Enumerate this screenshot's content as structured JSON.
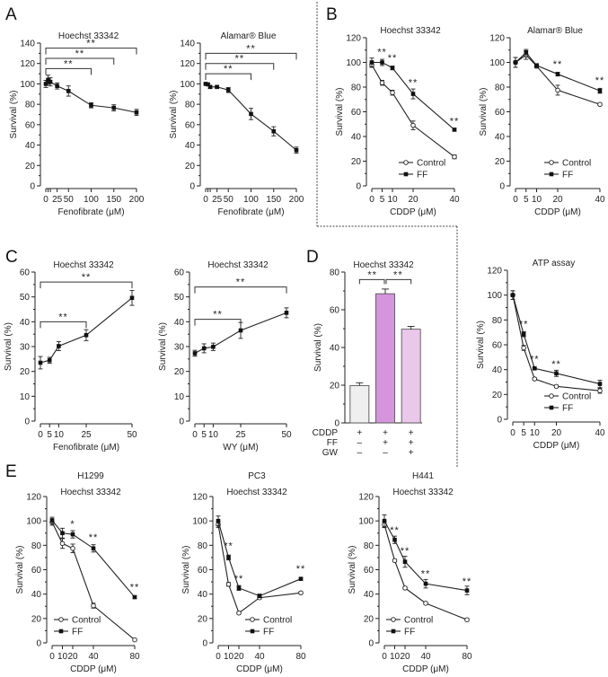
{
  "figure": {
    "panel_labels": [
      "A",
      "B",
      "C",
      "D",
      "E"
    ]
  },
  "chart_data": [
    {
      "id": "A1",
      "panel": "A",
      "type": "line",
      "title": "Hoechst 33342",
      "xlabel": "Fenofibrate (μM)",
      "ylabel": "Survival (%)",
      "xlim": [
        0,
        200
      ],
      "ylim": [
        0,
        140
      ],
      "xticks": [
        0,
        25,
        50,
        100,
        150,
        200
      ],
      "xticks_minor": [
        5,
        10
      ],
      "yticks": [
        0,
        20,
        40,
        60,
        80,
        100,
        120,
        140
      ],
      "series": [
        {
          "name": "Fenofibrate",
          "marker": "filled",
          "x": [
            0,
            5,
            10,
            25,
            50,
            100,
            150,
            200
          ],
          "y": [
            100,
            104,
            102,
            98,
            93,
            79,
            76.5,
            72
          ],
          "err": [
            3.5,
            4.5,
            4,
            3,
            5,
            2.5,
            3,
            3
          ]
        }
      ],
      "brackets": [
        {
          "from": 0,
          "to": 100,
          "level": 115,
          "label": "**"
        },
        {
          "from": 0,
          "to": 150,
          "level": 125,
          "label": "**"
        },
        {
          "from": 0,
          "to": 200,
          "level": 135,
          "label": "**"
        }
      ],
      "annotations": [],
      "legend": null
    },
    {
      "id": "A2",
      "panel": "A",
      "type": "line",
      "title": "Alamar® Blue",
      "xlabel": "Fenofibrate (μM)",
      "ylabel": "Survival (%)",
      "xlim": [
        0,
        200
      ],
      "ylim": [
        0,
        140
      ],
      "xticks": [
        0,
        25,
        50,
        100,
        150,
        200
      ],
      "xticks_minor": [
        5,
        10
      ],
      "yticks": [
        0,
        20,
        40,
        60,
        80,
        100,
        120,
        140
      ],
      "series": [
        {
          "name": "Fenofibrate",
          "marker": "filled",
          "x": [
            0,
            5,
            10,
            25,
            50,
            100,
            150,
            200
          ],
          "y": [
            100,
            99.5,
            97,
            97,
            94,
            70.5,
            53.5,
            35
          ],
          "err": [
            1,
            1,
            1.5,
            1,
            2.5,
            5.5,
            4.5,
            3
          ]
        }
      ],
      "brackets": [
        {
          "from": 0,
          "to": 100,
          "level": 110,
          "label": "**"
        },
        {
          "from": 0,
          "to": 150,
          "level": 120,
          "label": "**"
        },
        {
          "from": 0,
          "to": 200,
          "level": 130,
          "label": "**"
        }
      ],
      "annotations": [],
      "legend": null
    },
    {
      "id": "B1",
      "panel": "B",
      "type": "line",
      "title": "Hoechst 33342",
      "xlabel": "CDDP (μM)",
      "ylabel": "Survival (%)",
      "xlim": [
        0,
        40
      ],
      "ylim": [
        0,
        120
      ],
      "xticks": [
        0,
        5,
        10,
        20,
        40
      ],
      "yticks": [
        0,
        20,
        40,
        60,
        80,
        100,
        120
      ],
      "series": [
        {
          "name": "Control",
          "marker": "open",
          "x": [
            0,
            5,
            10,
            20,
            40
          ],
          "y": [
            98,
            83.5,
            75.5,
            49,
            23.5
          ],
          "err": [
            2,
            2,
            2,
            3.5,
            1.5
          ]
        },
        {
          "name": "FF",
          "marker": "filled",
          "x": [
            0,
            5,
            10,
            20,
            40
          ],
          "y": [
            100,
            100,
            95.5,
            74.5,
            45.5
          ],
          "err": [
            3.5,
            2.5,
            1.5,
            4,
            1
          ]
        }
      ],
      "brackets": [],
      "annotations": [
        {
          "x": 5,
          "y": 106,
          "label": "**"
        },
        {
          "x": 10,
          "y": 101,
          "label": "**"
        },
        {
          "x": 20,
          "y": 81,
          "label": "**"
        },
        {
          "x": 40,
          "y": 50,
          "label": "**"
        }
      ],
      "legend": {
        "position": "bottom-right",
        "entries": [
          "Control",
          "FF"
        ]
      }
    },
    {
      "id": "B2",
      "panel": "B",
      "type": "line",
      "title": "Alamar® Blue",
      "xlabel": "CDDP (μM)",
      "ylabel": "Survival (%)",
      "xlim": [
        0,
        40
      ],
      "ylim": [
        0,
        120
      ],
      "xticks": [
        0,
        5,
        10,
        20,
        40
      ],
      "yticks": [
        0,
        20,
        40,
        60,
        80,
        100,
        120
      ],
      "series": [
        {
          "name": "Control",
          "marker": "open",
          "x": [
            0,
            5,
            10,
            20,
            40
          ],
          "y": [
            100,
            106,
            97,
            77.5,
            66
          ],
          "err": [
            4,
            3.5,
            1.5,
            4,
            1
          ]
        },
        {
          "name": "FF",
          "marker": "filled",
          "x": [
            0,
            5,
            10,
            20,
            40
          ],
          "y": [
            100,
            108,
            97.5,
            90.5,
            77
          ],
          "err": [
            4,
            2.5,
            1.5,
            1.5,
            2
          ]
        }
      ],
      "brackets": [],
      "annotations": [
        {
          "x": 20,
          "y": 96,
          "label": "**"
        },
        {
          "x": 40,
          "y": 83,
          "label": "**"
        }
      ],
      "legend": {
        "position": "bottom-right",
        "entries": [
          "Control",
          "FF"
        ]
      }
    },
    {
      "id": "C1",
      "panel": "C",
      "type": "line",
      "title": "Hoechst 33342",
      "xlabel": "Fenofibrate (μM)",
      "ylabel": "Survival (%)",
      "xlim": [
        0,
        50
      ],
      "ylim": [
        0,
        60
      ],
      "xticks": [
        0,
        5,
        10,
        25,
        50
      ],
      "yticks": [
        0,
        10,
        20,
        30,
        40,
        50,
        60
      ],
      "series": [
        {
          "name": "Fenofibrate",
          "marker": "filled",
          "x": [
            0,
            5,
            10,
            25,
            50
          ],
          "y": [
            23.5,
            24.5,
            30.2,
            34.6,
            49.6
          ],
          "err": [
            2.5,
            1.2,
            1.8,
            2.2,
            3
          ]
        }
      ],
      "brackets": [
        {
          "from": 0,
          "to": 25,
          "level": 40,
          "label": "**"
        },
        {
          "from": 0,
          "to": 50,
          "level": 56,
          "label": "**"
        }
      ],
      "annotations": [],
      "legend": null
    },
    {
      "id": "C2",
      "panel": "C",
      "type": "line",
      "title": "Hoechst 33342",
      "xlabel": "WY (μM)",
      "ylabel": "Survival (%)",
      "xlim": [
        0,
        50
      ],
      "ylim": [
        0,
        60
      ],
      "xticks": [
        0,
        5,
        10,
        25,
        50
      ],
      "yticks": [
        0,
        10,
        20,
        30,
        40,
        50,
        60
      ],
      "series": [
        {
          "name": "WY",
          "marker": "filled",
          "x": [
            0,
            5,
            10,
            25,
            50
          ],
          "y": [
            27.3,
            29.3,
            29.9,
            36.5,
            43.6
          ],
          "err": [
            1.2,
            1.8,
            1.5,
            3.2,
            2
          ]
        }
      ],
      "brackets": [
        {
          "from": 0,
          "to": 25,
          "level": 41,
          "label": "**"
        },
        {
          "from": 0,
          "to": 50,
          "level": 54,
          "label": "**"
        }
      ],
      "annotations": [],
      "legend": null
    },
    {
      "id": "D1",
      "panel": "D",
      "type": "bar",
      "title": "Hoechst 33342",
      "xlabel": "",
      "ylabel": "Survival (%)",
      "ylim": [
        0,
        80
      ],
      "yticks": [
        0,
        20,
        40,
        60,
        80
      ],
      "categories": [
        "CDDP",
        "CDDP+FF",
        "CDDP+FF+GW"
      ],
      "values": [
        19.8,
        68.5,
        49.7
      ],
      "err": [
        1.5,
        2.5,
        1.5
      ],
      "colors": [
        "#efefef",
        "#d595dc",
        "#eac8ea"
      ],
      "condition_rows": [
        {
          "label": "CDDP",
          "values": [
            "+",
            "+",
            "+"
          ]
        },
        {
          "label": "FF",
          "values": [
            "–",
            "+",
            "+"
          ]
        },
        {
          "label": "GW",
          "values": [
            "–",
            "–",
            "+"
          ]
        }
      ],
      "brackets": [
        {
          "from": 0,
          "to": 1,
          "level": 76,
          "label": "**"
        },
        {
          "from": 1,
          "to": 2,
          "level": 76,
          "label": "**"
        }
      ]
    },
    {
      "id": "D2",
      "panel": "D",
      "type": "line",
      "title": "ATP assay",
      "xlabel": "CDDP (μM)",
      "ylabel": "Survival (%)",
      "xlim": [
        0,
        40
      ],
      "ylim": [
        0,
        120
      ],
      "xticks": [
        0,
        5,
        10,
        20,
        40
      ],
      "yticks": [
        0,
        20,
        40,
        60,
        80,
        100,
        120
      ],
      "series": [
        {
          "name": "Control",
          "marker": "open",
          "x": [
            0,
            5,
            10,
            20,
            40
          ],
          "y": [
            100,
            57.5,
            32.5,
            26.5,
            23
          ],
          "err": [
            3.5,
            2,
            1,
            1,
            2
          ]
        },
        {
          "name": "FF",
          "marker": "filled",
          "x": [
            0,
            5,
            10,
            20,
            40
          ],
          "y": [
            100,
            68.5,
            41,
            37,
            28.5
          ],
          "err": [
            3.5,
            2,
            1,
            2.5,
            3
          ]
        }
      ],
      "brackets": [],
      "annotations": [
        {
          "x": 5,
          "y": 74,
          "label": "**"
        },
        {
          "x": 10,
          "y": 46,
          "label": "**"
        },
        {
          "x": 20,
          "y": 42,
          "label": "**"
        }
      ],
      "legend": {
        "position": "bottom-right",
        "entries": [
          "Control",
          "FF"
        ]
      }
    },
    {
      "id": "E1",
      "panel": "E",
      "type": "line",
      "title": "H1299",
      "subtitle": "Hoechst 33342",
      "xlabel": "CDDP (μM)",
      "ylabel": "Survival (%)",
      "xlim": [
        0,
        80
      ],
      "ylim": [
        0,
        120
      ],
      "xticks": [
        0,
        10,
        20,
        40,
        80
      ],
      "yticks": [
        0,
        20,
        40,
        60,
        80,
        100,
        120
      ],
      "series": [
        {
          "name": "Control",
          "marker": "open",
          "x": [
            0,
            10,
            20,
            40,
            80
          ],
          "y": [
            99,
            81.5,
            77.5,
            30.5,
            2.5
          ],
          "err": [
            2.5,
            4,
            3.5,
            2,
            1
          ]
        },
        {
          "name": "FF",
          "marker": "filled",
          "x": [
            0,
            10,
            20,
            40,
            80
          ],
          "y": [
            100.5,
            90,
            89,
            77.5,
            37.5
          ],
          "err": [
            2.5,
            4,
            3,
            3,
            1
          ]
        }
      ],
      "brackets": [],
      "annotations": [
        {
          "x": 20,
          "y": 95,
          "label": "*"
        },
        {
          "x": 40,
          "y": 84,
          "label": "**"
        },
        {
          "x": 80,
          "y": 43,
          "label": "**"
        }
      ],
      "legend": {
        "position": "bottom-left",
        "entries": [
          "Control",
          "FF"
        ]
      }
    },
    {
      "id": "E2",
      "panel": "E",
      "type": "line",
      "title": "PC3",
      "subtitle": "Hoechst 33342",
      "xlabel": "CDDP (μM)",
      "ylabel": "Survival (%)",
      "xlim": [
        0,
        80
      ],
      "ylim": [
        0,
        120
      ],
      "xticks": [
        0,
        10,
        20,
        40,
        80
      ],
      "yticks": [
        0,
        20,
        40,
        60,
        80,
        100,
        120
      ],
      "series": [
        {
          "name": "Control",
          "marker": "open",
          "x": [
            0,
            10,
            20,
            40,
            80
          ],
          "y": [
            97,
            48,
            24.5,
            37,
            41
          ],
          "err": [
            2.5,
            1.5,
            1,
            1,
            1
          ]
        },
        {
          "name": "FF",
          "marker": "filled",
          "x": [
            0,
            10,
            20,
            40,
            80
          ],
          "y": [
            100,
            70,
            45,
            38.5,
            52.5
          ],
          "err": [
            4,
            2,
            2,
            1.5,
            1
          ]
        }
      ],
      "brackets": [],
      "annotations": [
        {
          "x": 10,
          "y": 77,
          "label": "**"
        },
        {
          "x": 20,
          "y": 50,
          "label": "**"
        },
        {
          "x": 80,
          "y": 58,
          "label": "**"
        }
      ],
      "legend": {
        "position": "bottom-right",
        "entries": [
          "Control",
          "FF"
        ]
      }
    },
    {
      "id": "E3",
      "panel": "E",
      "type": "line",
      "title": "H441",
      "subtitle": "Hoechst 33342",
      "xlabel": "CDDP (μM)",
      "ylabel": "Survival (%)",
      "xlim": [
        0,
        80
      ],
      "ylim": [
        0,
        120
      ],
      "xticks": [
        0,
        10,
        20,
        40,
        80
      ],
      "yticks": [
        0,
        20,
        40,
        60,
        80,
        100,
        120
      ],
      "series": [
        {
          "name": "Control",
          "marker": "open",
          "x": [
            0,
            10,
            20,
            40,
            80
          ],
          "y": [
            97,
            67.5,
            45,
            32.5,
            19
          ],
          "err": [
            2.5,
            1,
            1,
            1,
            1
          ]
        },
        {
          "name": "FF",
          "marker": "filled",
          "x": [
            0,
            10,
            20,
            40,
            80
          ],
          "y": [
            100,
            84.5,
            66.5,
            48.5,
            43
          ],
          "err": [
            5,
            3,
            4.5,
            3.5,
            3.5
          ]
        }
      ],
      "brackets": [],
      "annotations": [
        {
          "x": 10,
          "y": 90,
          "label": "**"
        },
        {
          "x": 20,
          "y": 73,
          "label": "**"
        },
        {
          "x": 40,
          "y": 54,
          "label": "**"
        },
        {
          "x": 80,
          "y": 48,
          "label": "**"
        }
      ],
      "legend": {
        "position": "bottom-left",
        "entries": [
          "Control",
          "FF"
        ]
      }
    }
  ]
}
